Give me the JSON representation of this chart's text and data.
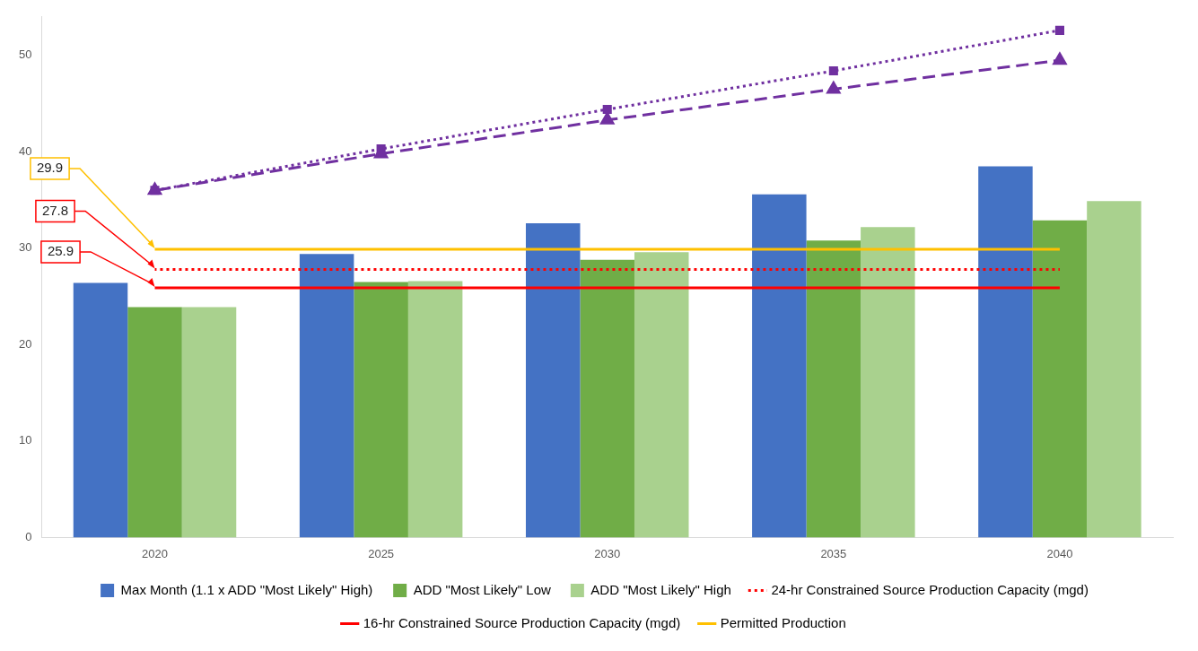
{
  "chart_data": {
    "type": "bar",
    "categories": [
      "2020",
      "2025",
      "2030",
      "2035",
      "2040"
    ],
    "ylim": [
      0,
      54
    ],
    "yticks": [
      0,
      10,
      20,
      30,
      40,
      50
    ],
    "grid": false,
    "legend": "bottom",
    "series": [
      {
        "name": "Max Month (1.1 x ADD \"Most Likely\" High)",
        "color": "#4472c4",
        "values": [
          26.4,
          29.4,
          32.6,
          35.6,
          38.5
        ]
      },
      {
        "name": "ADD \"Most Likely\" Low",
        "color": "#70ad47",
        "values": [
          23.9,
          26.5,
          28.8,
          30.8,
          32.9
        ]
      },
      {
        "name": "ADD \"Most Likely\" High",
        "color": "#a9d18e",
        "values": [
          23.9,
          26.6,
          29.6,
          32.2,
          34.9
        ]
      },
      {
        "name": "24-hr Constrained Source Production Capacity (mgd)",
        "type": "line",
        "color": "#ff0000",
        "line_style": "dotted",
        "marker": "none",
        "values": [
          27.8,
          27.8,
          27.8,
          27.8,
          27.8
        ],
        "value_labels": [
          "27.8",
          null,
          null,
          null,
          null
        ]
      },
      {
        "name": "16-hr Constrained Source Production Capacity (mgd)",
        "type": "line",
        "color": "#ff0000",
        "line_style": "solid",
        "marker": "none",
        "values": [
          25.9,
          25.9,
          25.9,
          25.9,
          25.9
        ],
        "value_labels": [
          "25.9",
          null,
          null,
          null,
          null
        ]
      },
      {
        "name": "Permitted Production",
        "type": "line",
        "color": "#ffc000",
        "line_style": "solid",
        "marker": "none",
        "values": [
          29.9,
          29.9,
          29.9,
          29.9,
          29.9
        ],
        "value_labels": [
          "29.9",
          null,
          null,
          null,
          null
        ]
      },
      {
        "type": "line",
        "color": "#7030a0",
        "line_style": "dashed",
        "marker": "triangle",
        "values": [
          36.0,
          39.8,
          43.3,
          46.5,
          49.5
        ]
      },
      {
        "type": "line",
        "color": "#7030a0",
        "line_style": "dotted",
        "marker": "square",
        "values": [
          36.0,
          40.3,
          44.4,
          48.4,
          52.6
        ]
      }
    ]
  }
}
